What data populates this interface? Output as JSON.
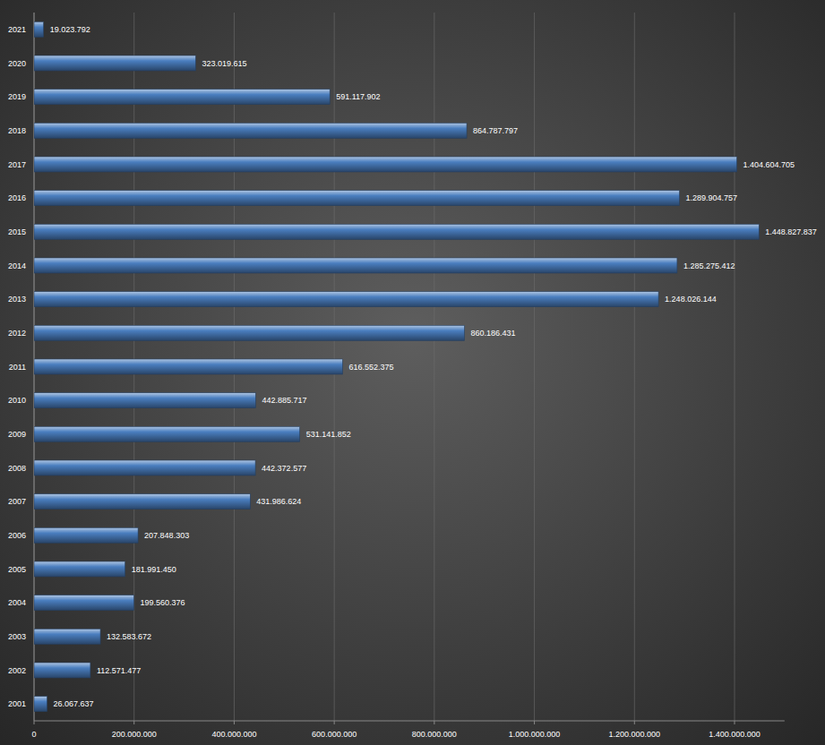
{
  "chart_data": {
    "type": "bar",
    "orientation": "horizontal",
    "categories": [
      "2001",
      "2002",
      "2003",
      "2004",
      "2005",
      "2006",
      "2007",
      "2008",
      "2009",
      "2010",
      "2011",
      "2012",
      "2013",
      "2014",
      "2015",
      "2016",
      "2017",
      "2018",
      "2019",
      "2020",
      "2021"
    ],
    "values": [
      26067637,
      112571477,
      132583672,
      199560376,
      181991450,
      207848303,
      431986624,
      442372577,
      531141852,
      442885717,
      616552375,
      860186431,
      1248026144,
      1285275412,
      1448827837,
      1289904757,
      1404604705,
      864787797,
      591117902,
      323019615,
      19023792
    ],
    "value_labels": [
      "26.067.637",
      "112.571.477",
      "132.583.672",
      "199.560.376",
      "181.991.450",
      "207.848.303",
      "431.986.624",
      "442.372.577",
      "531.141.852",
      "442.885.717",
      "616.552.375",
      "860.186.431",
      "1.248.026.144",
      "1.285.275.412",
      "1.448.827.837",
      "1.289.904.757",
      "1.404.604.705",
      "864.787.797",
      "591.117.902",
      "323.019.615",
      "19.023.792"
    ],
    "color": "#4a7ebf",
    "xlim": [
      0,
      1500000000
    ],
    "xticks": [
      0,
      {
        "value": 200000000,
        "label": "200.000.000"
      },
      {
        "value": 400000000,
        "label": "400.000.000"
      },
      {
        "value": 600000000,
        "label": "600.000.000"
      },
      {
        "value": 800000000,
        "label": "800.000.000"
      },
      {
        "value": 1000000000,
        "label": "1.000.000.000"
      },
      {
        "value": 1200000000,
        "label": "1.200.000.000"
      },
      {
        "value": 1400000000,
        "label": "1.400.000.000"
      }
    ],
    "grid": true,
    "data_labels": true
  }
}
